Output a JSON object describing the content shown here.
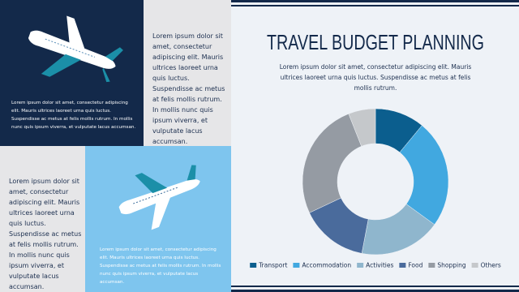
{
  "panels": {
    "top_left_caption": "Lorem ipsum dolor sit amet, consectetur adipiscing elit. Mauris ultrices laoreet urna quis luctus. Suspendisse ac metus at felis mollis rutrum. In mollis nunc quis ipsum viverra, et vulputate lacus accumsan.",
    "top_right_text": "Lorem ipsum dolor sit amet, consectetur adipiscing elit. Mauris ultrices laoreet urna quis luctus. Suspendisse ac metus at felis mollis rutrum. In mollis nunc quis ipsum viverra, et vulputate lacus accumsan.",
    "bottom_left_text": "Lorem ipsum dolor sit amet, consectetur adipiscing elit. Mauris ultrices laoreet urna quis luctus. Suspendisse ac metus at felis mollis rutrum. In mollis nunc quis ipsum viverra, et vulputate lacus accumsan.",
    "bottom_mid_caption": "Lorem ipsum dolor sit amet, consectetur adipiscing elit. Mauris ultrices laoreet urna quis luctus. Suspendisse ac metus at felis mollis rutrum. In mollis nunc quis ipsum viverra, et vulputate lacus accumsan."
  },
  "chart_data": {
    "type": "pie",
    "title": "TRAVEL BUDGET PLANNING",
    "subtitle": "Lorem ipsum dolor sit amet, consectetur adipiscing elit. Mauris ultrices laoreet urna quis luctus. Suspendisse ac metus at felis mollis rutrum.",
    "categories": [
      "Transport",
      "Accommodation",
      "Activities",
      "Food",
      "Shopping",
      "Others"
    ],
    "values": [
      11,
      24,
      18,
      15,
      26,
      6
    ],
    "colors": [
      "#0b5e8e",
      "#41a8e0",
      "#8fb6cd",
      "#4a6b9c",
      "#959ba3",
      "#c5c8cb"
    ],
    "donut": true
  }
}
